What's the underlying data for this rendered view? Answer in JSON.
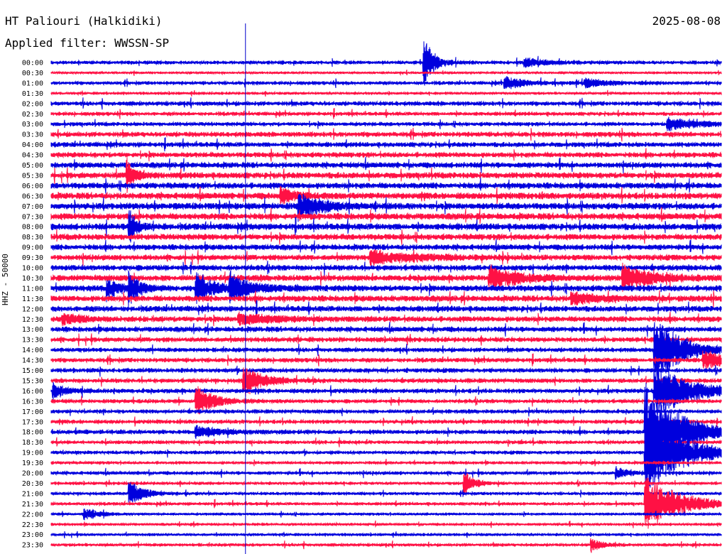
{
  "header": {
    "station": "HT Paliouri (Halkidiki)",
    "date": "2025-08-08",
    "filter": "Applied filter: WWSSN-SP"
  },
  "y_axis_label": "HHZ - 50000",
  "colors": {
    "even_trace": "#0000dd",
    "odd_trace": "#ff1144",
    "marker_line": "#0000cc"
  },
  "chart_data": {
    "type": "line",
    "title": "HT Paliouri (Halkidiki)",
    "subtitle": "Applied filter: WWSSN-SP",
    "ylabel": "HHZ - 50000",
    "rows": [
      "00:00",
      "00:30",
      "01:00",
      "01:30",
      "02:00",
      "02:30",
      "03:00",
      "03:30",
      "04:00",
      "04:30",
      "05:00",
      "05:30",
      "06:00",
      "06:30",
      "07:00",
      "07:30",
      "08:00",
      "08:30",
      "09:00",
      "09:30",
      "10:00",
      "10:30",
      "11:00",
      "11:30",
      "12:00",
      "12:30",
      "13:00",
      "13:30",
      "14:00",
      "14:30",
      "15:00",
      "15:30",
      "16:00",
      "16:30",
      "17:00",
      "17:30",
      "18:00",
      "18:30",
      "19:00",
      "19:30",
      "20:00",
      "20:30",
      "21:00",
      "21:30",
      "22:00",
      "22:30",
      "23:00",
      "23:30"
    ],
    "row_duration_min": 30,
    "marker_minute": 8.7,
    "noise": [
      1.6,
      1.0,
      1.6,
      1.2,
      2.0,
      1.7,
      1.8,
      2.3,
      2.2,
      2.4,
      2.6,
      2.8,
      2.8,
      3.0,
      3.0,
      3.0,
      3.0,
      2.8,
      2.6,
      2.6,
      2.6,
      2.8,
      2.8,
      2.8,
      2.6,
      2.6,
      2.4,
      2.2,
      2.0,
      2.0,
      2.0,
      2.0,
      2.0,
      1.8,
      1.8,
      1.8,
      2.0,
      1.6,
      1.6,
      1.4,
      1.6,
      1.4,
      1.4,
      1.4,
      1.2,
      1.2,
      1.2,
      1.4
    ],
    "events": [
      {
        "row": 0,
        "minute": 16.7,
        "amp": 38,
        "decay": 0.4
      },
      {
        "row": 0,
        "minute": 21.2,
        "amp": 6,
        "decay": 1.2
      },
      {
        "row": 2,
        "minute": 20.3,
        "amp": 10,
        "decay": 0.8
      },
      {
        "row": 2,
        "minute": 23.9,
        "amp": 6,
        "decay": 1.0
      },
      {
        "row": 6,
        "minute": 27.6,
        "amp": 9,
        "decay": 1.2
      },
      {
        "row": 11,
        "minute": 3.4,
        "amp": 24,
        "decay": 0.3
      },
      {
        "row": 13,
        "minute": 10.3,
        "amp": 12,
        "decay": 0.6
      },
      {
        "row": 14,
        "minute": 11.1,
        "amp": 20,
        "decay": 1.0
      },
      {
        "row": 16,
        "minute": 3.5,
        "amp": 26,
        "decay": 0.3
      },
      {
        "row": 19,
        "minute": 14.3,
        "amp": 10,
        "decay": 1.8
      },
      {
        "row": 21,
        "minute": 19.6,
        "amp": 18,
        "decay": 1.2
      },
      {
        "row": 21,
        "minute": 25.6,
        "amp": 18,
        "decay": 1.2
      },
      {
        "row": 22,
        "minute": 2.5,
        "amp": 18,
        "decay": 0.5
      },
      {
        "row": 22,
        "minute": 3.5,
        "amp": 22,
        "decay": 0.4
      },
      {
        "row": 22,
        "minute": 6.5,
        "amp": 20,
        "decay": 0.8
      },
      {
        "row": 22,
        "minute": 8.0,
        "amp": 20,
        "decay": 0.8
      },
      {
        "row": 23,
        "minute": 23.3,
        "amp": 10,
        "decay": 1.0
      },
      {
        "row": 25,
        "minute": 0.5,
        "amp": 8,
        "decay": 0.8
      },
      {
        "row": 25,
        "minute": 8.4,
        "amp": 10,
        "decay": 1.2
      },
      {
        "row": 28,
        "minute": 27.0,
        "amp": 60,
        "decay": 1.0
      },
      {
        "row": 29,
        "minute": 29.2,
        "amp": 14,
        "decay": 1.0
      },
      {
        "row": 31,
        "minute": 8.6,
        "amp": 24,
        "decay": 0.8
      },
      {
        "row": 32,
        "minute": 0.1,
        "amp": 12,
        "decay": 0.5
      },
      {
        "row": 32,
        "minute": 27.0,
        "amp": 40,
        "decay": 1.5
      },
      {
        "row": 33,
        "minute": 6.5,
        "amp": 22,
        "decay": 0.7
      },
      {
        "row": 36,
        "minute": 26.6,
        "amp": 70,
        "decay": 1.5
      },
      {
        "row": 36,
        "minute": 6.5,
        "amp": 8,
        "decay": 1.0
      },
      {
        "row": 38,
        "minute": 26.6,
        "amp": 70,
        "decay": 1.5
      },
      {
        "row": 40,
        "minute": 25.3,
        "amp": 8,
        "decay": 0.5
      },
      {
        "row": 41,
        "minute": 18.5,
        "amp": 18,
        "decay": 0.4
      },
      {
        "row": 42,
        "minute": 3.5,
        "amp": 18,
        "decay": 0.6
      },
      {
        "row": 43,
        "minute": 26.6,
        "amp": 40,
        "decay": 1.5
      },
      {
        "row": 44,
        "minute": 1.5,
        "amp": 8,
        "decay": 0.6
      },
      {
        "row": 47,
        "minute": 24.2,
        "amp": 10,
        "decay": 0.4
      }
    ]
  }
}
